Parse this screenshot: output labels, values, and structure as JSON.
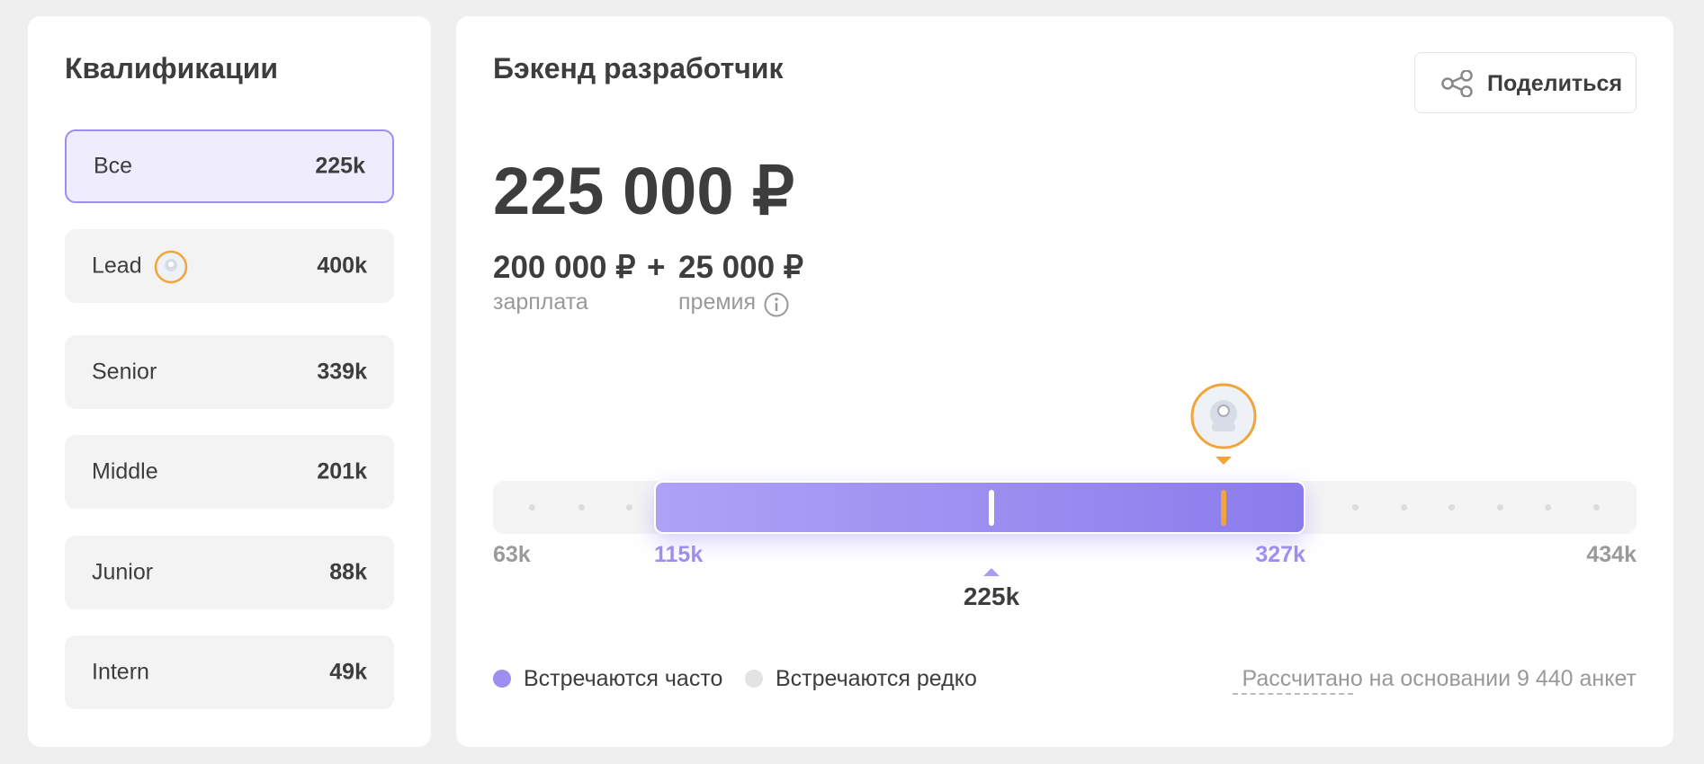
{
  "sidebar": {
    "title": "Квалификации",
    "items": [
      {
        "name": "Все",
        "value": "225k"
      },
      {
        "name": "Lead",
        "value": "400k"
      },
      {
        "name": "Senior",
        "value": "339k"
      },
      {
        "name": "Middle",
        "value": "201k"
      },
      {
        "name": "Junior",
        "value": "88k"
      },
      {
        "name": "Intern",
        "value": "49k"
      }
    ]
  },
  "main": {
    "title": "Бэкенд разработчик",
    "share": "Поделиться",
    "total": "225 000 ₽",
    "salary": {
      "value": "200 000 ₽",
      "label": "зарплата"
    },
    "plus": "+",
    "bonus": {
      "value": "25 000 ₽",
      "label": "премия"
    },
    "range": {
      "min": "63k",
      "low": "115k",
      "median": "225k",
      "high": "327k",
      "max": "434k"
    },
    "legend": [
      "Встречаются часто",
      "Встречаются редко"
    ],
    "note": "Рассчитано на основании 9 440 анкет"
  }
}
